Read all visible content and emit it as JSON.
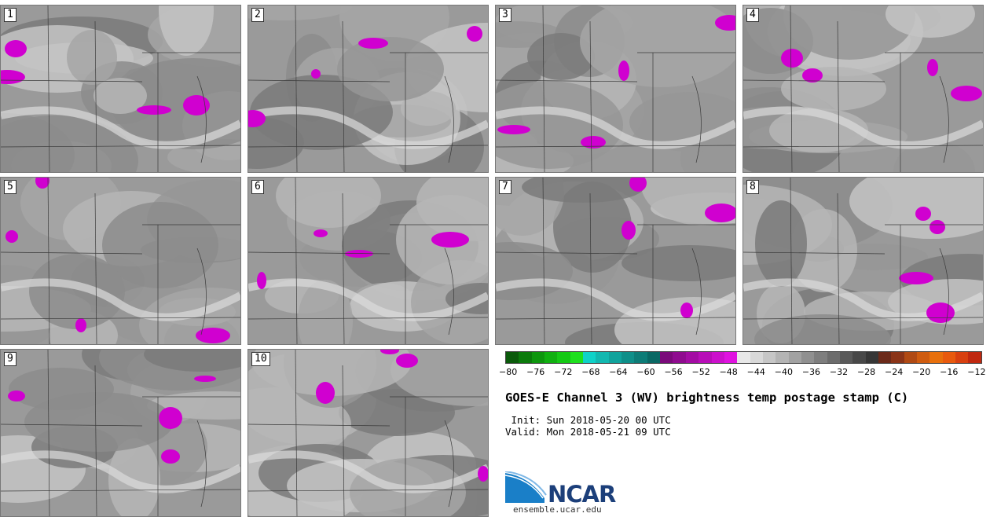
{
  "panels": [
    {
      "label": "1"
    },
    {
      "label": "2"
    },
    {
      "label": "3"
    },
    {
      "label": "4"
    },
    {
      "label": "5"
    },
    {
      "label": "6"
    },
    {
      "label": "7"
    },
    {
      "label": "8"
    },
    {
      "label": "9"
    },
    {
      "label": "10"
    }
  ],
  "colorbar": {
    "colors": [
      "#0a5a0a",
      "#0b7a0b",
      "#0d960d",
      "#10b010",
      "#14c914",
      "#1ee01e",
      "#0fd2c8",
      "#12b8b0",
      "#11a39c",
      "#0f8f89",
      "#0d7c77",
      "#0a6864",
      "#7a0a7a",
      "#8f0b8f",
      "#a30ca3",
      "#b80eb8",
      "#cc10cc",
      "#e012e0",
      "#e8e8e8",
      "#d8d8d8",
      "#c6c6c6",
      "#b4b4b4",
      "#a2a2a2",
      "#909090",
      "#7e7e7e",
      "#6c6c6c",
      "#5a5a5a",
      "#484848",
      "#363636",
      "#6b2a1a",
      "#8a3418",
      "#b04a14",
      "#cf5c10",
      "#e8700c",
      "#e85a0e",
      "#d84010",
      "#c02810"
    ],
    "ticks": [
      "−80",
      "−76",
      "−72",
      "−68",
      "−64",
      "−60",
      "−56",
      "−52",
      "−48",
      "−44",
      "−40",
      "−36",
      "−32",
      "−28",
      "−24",
      "−20",
      "−16",
      "−12"
    ]
  },
  "title": "GOES-E Channel 3 (WV) brightness temp postage stamp (C)",
  "init": " Init: Sun 2018-05-20 00 UTC",
  "valid": "Valid: Mon 2018-05-21 09 UTC",
  "logo": {
    "name": "NCAR",
    "url": "ensemble.ucar.edu"
  }
}
